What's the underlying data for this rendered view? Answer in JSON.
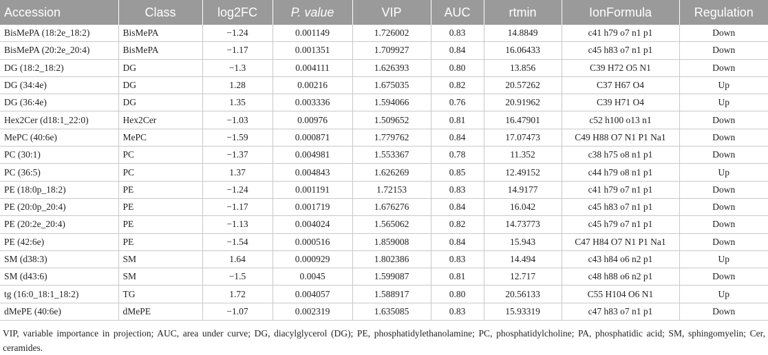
{
  "table": {
    "headers": [
      "Accession",
      "Class",
      "log2FC",
      "P. value",
      "VIP",
      "AUC",
      "rtmin",
      "IonFormula",
      "Regulation"
    ],
    "rows": [
      [
        "BisMePA (18:2e_18:2)",
        "BisMePA",
        "−1.24",
        "0.001149",
        "1.726002",
        "0.83",
        "14.8849",
        "c41 h79 o7 n1 p1",
        "Down"
      ],
      [
        "BisMePA (20:2e_20:4)",
        "BisMePA",
        "−1.17",
        "0.001351",
        "1.709927",
        "0.84",
        "16.06433",
        "c45 h83 o7 n1 p1",
        "Down"
      ],
      [
        "DG (18:2_18:2)",
        "DG",
        "−1.3",
        "0.004111",
        "1.626393",
        "0.80",
        "13.856",
        "C39 H72 O5 N1",
        "Down"
      ],
      [
        "DG (34:4e)",
        "DG",
        "1.28",
        "0.00216",
        "1.675035",
        "0.82",
        "20.57262",
        "C37 H67 O4",
        "Up"
      ],
      [
        "DG (36:4e)",
        "DG",
        "1.35",
        "0.003336",
        "1.594066",
        "0.76",
        "20.91962",
        "C39 H71 O4",
        "Up"
      ],
      [
        "Hex2Cer (d18:1_22:0)",
        "Hex2Cer",
        "−1.03",
        "0.00976",
        "1.509652",
        "0.81",
        "16.47901",
        "c52 h100 o13 n1",
        "Down"
      ],
      [
        "MePC (40:6e)",
        "MePC",
        "−1.59",
        "0.000871",
        "1.779762",
        "0.84",
        "17.07473",
        "C49 H88 O7 N1 P1 Na1",
        "Down"
      ],
      [
        "PC (30:1)",
        "PC",
        "−1.37",
        "0.004981",
        "1.553367",
        "0.78",
        "11.352",
        "c38 h75 o8 n1 p1",
        "Down"
      ],
      [
        "PC (36:5)",
        "PC",
        "1.37",
        "0.004843",
        "1.626269",
        "0.85",
        "12.49152",
        "c44 h79 o8 n1 p1",
        "Up"
      ],
      [
        "PE (18:0p_18:2)",
        "PE",
        "−1.24",
        "0.001191",
        "1.72153",
        "0.83",
        "14.9177",
        "c41 h79 o7 n1 p1",
        "Down"
      ],
      [
        "PE (20:0p_20:4)",
        "PE",
        "−1.17",
        "0.001719",
        "1.676276",
        "0.84",
        "16.042",
        "c45 h83 o7 n1 p1",
        "Down"
      ],
      [
        "PE (20:2e_20:4)",
        "PE",
        "−1.13",
        "0.004024",
        "1.565062",
        "0.82",
        "14.73773",
        "c45 h79 o7 n1 p1",
        "Down"
      ],
      [
        "PE (42:6e)",
        "PE",
        "−1.54",
        "0.000516",
        "1.859008",
        "0.84",
        "15.943",
        "C47 H84 O7 N1 P1 Na1",
        "Down"
      ],
      [
        "SM (d38:3)",
        "SM",
        "1.64",
        "0.000929",
        "1.802386",
        "0.83",
        "14.494",
        "c43 h84 o6 n2 p1",
        "Up"
      ],
      [
        "SM (d43:6)",
        "SM",
        "−1.5",
        "0.0045",
        "1.599087",
        "0.81",
        "12.717",
        "c48 h88 o6 n2 p1",
        "Down"
      ],
      [
        "tg (16:0_18:1_18:2)",
        "TG",
        "1.72",
        "0.004057",
        "1.588917",
        "0.80",
        "20.56133",
        "C55 H104 O6 N1",
        "Up"
      ],
      [
        "dMePE (40:6e)",
        "dMePE",
        "−1.07",
        "0.002319",
        "1.635085",
        "0.83",
        "15.93319",
        "c47 h83 o7 n1 p1",
        "Down"
      ]
    ]
  },
  "footnote": "VIP, variable importance in projection; AUC, area under curve; DG, diacylglycerol (DG); PE, phosphatidylethanolamine; PC, phosphatidylcholine; PA, phosphatidic acid; SM, sphingomyelin; Cer, ceramides.",
  "colors": {
    "header_bg": "#9a9a9a",
    "header_text": "#ffffff",
    "rule": "#c8c8c8"
  }
}
